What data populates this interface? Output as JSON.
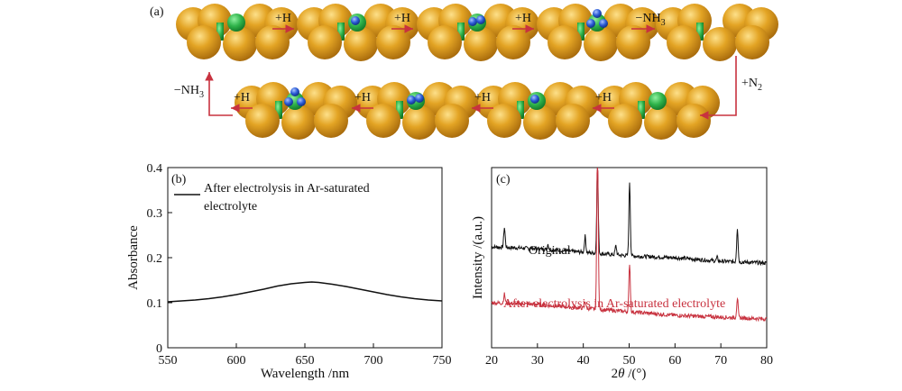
{
  "panel_a": {
    "label": "(a)",
    "row1_steps": [
      {
        "html_text": "+H",
        "sub": ""
      },
      {
        "html_text": "+H",
        "sub": ""
      },
      {
        "html_text": "+H",
        "sub": ""
      },
      {
        "html_text": "−NH",
        "sub": "3"
      }
    ],
    "side_step": {
      "html_text": "+N",
      "sub": "2"
    },
    "row2_steps": [
      {
        "html_text": "+H",
        "sub": ""
      },
      {
        "html_text": "+H",
        "sub": ""
      },
      {
        "html_text": "+H",
        "sub": ""
      },
      {
        "html_text": "+H",
        "sub": ""
      }
    ],
    "left_step": {
      "html_text": "−NH",
      "sub": "3"
    },
    "colors": {
      "gold_atom": "#e0a21e",
      "green_atom": "#2fb34a",
      "blue_atom": "#2a5bd6",
      "arrow": "#c8323f"
    }
  },
  "chart_data": [
    {
      "type": "line",
      "panel_label": "(b)",
      "xlabel": "Wavelength /nm",
      "ylabel": "Absorbance",
      "xlim": [
        550,
        750
      ],
      "ylim": [
        0,
        0.4
      ],
      "xticks": [
        550,
        600,
        650,
        700,
        750
      ],
      "yticks": [
        0,
        0.1,
        0.2,
        0.3,
        0.4
      ],
      "ytick_labels": [
        "0",
        "0.1",
        "0.2",
        "0.3",
        "0.4"
      ],
      "legend": "top-left",
      "series": [
        {
          "name": "After electrolysis in Ar-saturated electrolyte",
          "color": "#111111",
          "x": [
            550,
            560,
            570,
            580,
            590,
            600,
            610,
            620,
            630,
            640,
            650,
            655,
            660,
            670,
            680,
            690,
            700,
            710,
            720,
            730,
            740,
            750
          ],
          "y": [
            0.102,
            0.104,
            0.106,
            0.109,
            0.113,
            0.118,
            0.124,
            0.13,
            0.137,
            0.142,
            0.145,
            0.146,
            0.145,
            0.141,
            0.136,
            0.13,
            0.124,
            0.118,
            0.113,
            0.109,
            0.106,
            0.104
          ]
        }
      ]
    },
    {
      "type": "line",
      "panel_label": "(c)",
      "xlabel": "2θ /(°)",
      "ylabel": "Intensity /(a.u.)",
      "xlim": [
        20,
        80
      ],
      "xticks": [
        20,
        30,
        40,
        50,
        60,
        70,
        80
      ],
      "yticks": [],
      "series": [
        {
          "name": "Original",
          "color": "#111111",
          "baseline": [
            [
              20,
              0.56
            ],
            [
              30,
              0.55
            ],
            [
              40,
              0.53
            ],
            [
              50,
              0.51
            ],
            [
              60,
              0.5
            ],
            [
              70,
              0.48
            ],
            [
              80,
              0.47
            ]
          ],
          "peaks": [
            [
              22.8,
              0.11
            ],
            [
              32.3,
              0.03
            ],
            [
              40.4,
              0.09
            ],
            [
              43.1,
              0.5
            ],
            [
              47.1,
              0.05
            ],
            [
              50.1,
              0.41
            ],
            [
              69.2,
              0.02
            ],
            [
              73.6,
              0.19
            ]
          ]
        },
        {
          "name": "After electrolysis in Ar-saturated electrolyte",
          "color": "#c8323f",
          "baseline": [
            [
              20,
              0.25
            ],
            [
              30,
              0.24
            ],
            [
              40,
              0.22
            ],
            [
              50,
              0.2
            ],
            [
              60,
              0.18
            ],
            [
              70,
              0.17
            ],
            [
              80,
              0.16
            ]
          ],
          "peaks": [
            [
              22.8,
              0.05
            ],
            [
              40.4,
              0.04
            ],
            [
              43.1,
              0.94
            ],
            [
              50.1,
              0.27
            ],
            [
              73.6,
              0.11
            ]
          ]
        }
      ]
    }
  ]
}
